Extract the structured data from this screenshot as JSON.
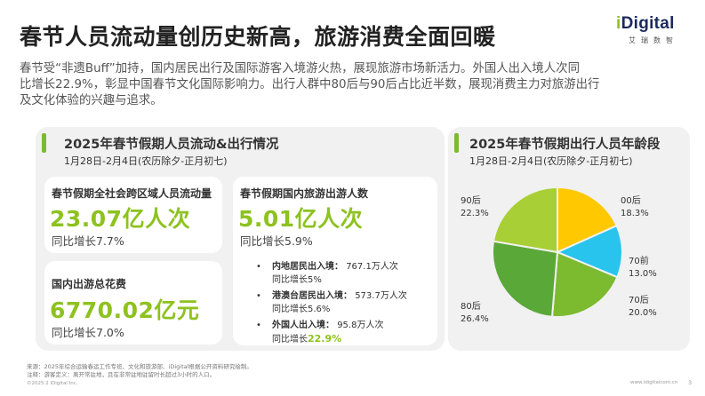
{
  "header": {
    "title": "春节人员流动量创历史新高，旅游消费全面回暖",
    "logo_text": "iDigital",
    "logo_sub": "艾瑞数智"
  },
  "intro": {
    "line1": "春节受“非遗Buff”加持，国内居民出行及国际游客入境游火热，展现旅游市场新活力。外国人出入境人次同",
    "line2": "比增长22.9%，彰显中国春节文化国际影响力。出行人群中80后与90后占比近半数，展现消费主力对旅游出行",
    "line3": "及文化体验的兴趣与追求。"
  },
  "left_card": {
    "title": "2025年春节假期人员流动&出行情况",
    "subtitle": "1月28日-2月4日(农历除夕-正月初七)",
    "cross_region": {
      "label": "春节假期全社会跨区域人员流动量",
      "value": "23.07亿人次",
      "growth": "同比增长7.7%"
    },
    "domestic_spend": {
      "label": "国内出游总花费",
      "value": "6770.02亿元",
      "growth": "同比增长7.0%"
    },
    "domestic_trips": {
      "label": "春节假期国内旅游出游人数",
      "value": "5.01亿人次",
      "growth": "同比增长5.9%"
    },
    "bullets": [
      {
        "head": "内地居民出入境：",
        "value": "767.1万人次",
        "growth_prefix": "同比增长",
        "growth": "5%"
      },
      {
        "head": "港澳台居民出入境：",
        "value": "573.7万人次",
        "growth_prefix": "同比增长",
        "growth": "5.6%"
      },
      {
        "head": "外国人出入境：",
        "value": "95.8万人次",
        "growth_prefix": "同比增长",
        "growth": "22.9%"
      }
    ]
  },
  "right_card": {
    "title": "2025年春节假期出行人员年龄段",
    "subtitle": "1月28日-2月4日(农历除夕-正月初七)"
  },
  "chart_data": {
    "type": "pie",
    "title": "2025年春节假期出行人员年龄段",
    "labels": [
      "00后",
      "70前",
      "70后",
      "80后",
      "90后"
    ],
    "values": [
      18.3,
      13.0,
      20.0,
      26.4,
      22.3
    ],
    "value_labels": [
      "18.3%",
      "13.0%",
      "20.0%",
      "26.4%",
      "22.3%"
    ],
    "colors": [
      "#ffc800",
      "#29c4ee",
      "#7cba2f",
      "#5aa838",
      "#a8cf35"
    ]
  },
  "footer": {
    "source": "来源：2025年综合运输春运工作专班、文化和旅游部、iDigital根据公开资料研究绘制。",
    "note": "注释：游客定义：离开常驻地，且在非常驻地驻留时长超过3小时的人口。",
    "copyright": "©2025.2 iDigital Inc.",
    "site": "www.idigitalcom.cn",
    "page": "3"
  }
}
